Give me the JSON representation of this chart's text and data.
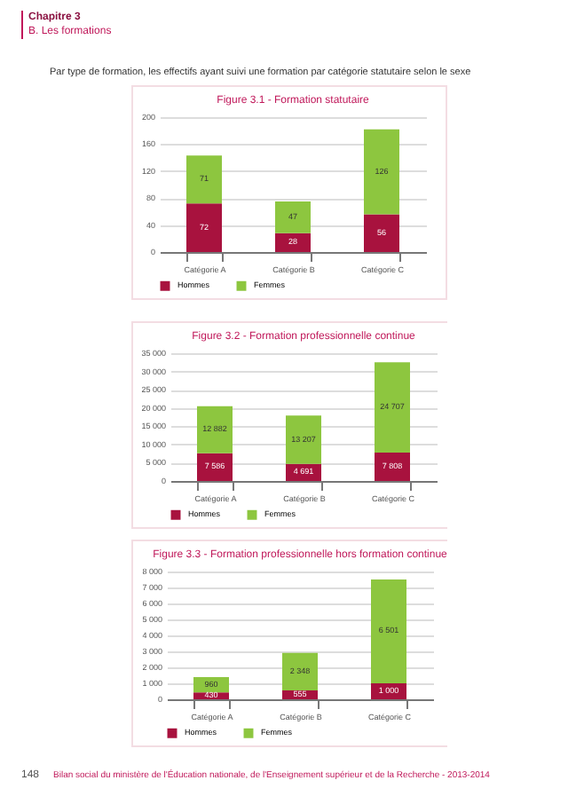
{
  "chart_data": [
    {
      "type": "bar",
      "title": "Figure 3.1 - Formation statutaire",
      "annotations": [
        "Chapitre 3",
        "B. Les formations",
        "Par type de formation, les effectifs ayant suivi une formation par catégorie statutaire selon le sexe"
      ],
      "categories": [
        "Catégorie A",
        "Catégorie B",
        "Catégorie C"
      ],
      "series": [
        {
          "name": "Hommes",
          "color": "#a8123e",
          "values": [
            72,
            28,
            56
          ],
          "value_labels": [
            "72",
            "28",
            "56"
          ]
        },
        {
          "name": "Femmes",
          "color": "#8dc63f",
          "values": [
            71,
            47,
            126
          ],
          "value_labels": [
            "71",
            "47",
            "126"
          ]
        }
      ],
      "stacked": true,
      "ylim": [
        0,
        200
      ],
      "yticks": [
        0,
        40,
        80,
        120,
        160,
        200
      ],
      "grid": "y",
      "legend": "bottom left"
    },
    {
      "type": "bar",
      "title": "Figure 3.2 - Formation professionnelle continue",
      "categories": [
        "Catégorie A",
        "Catégorie B",
        "Catégorie C"
      ],
      "series": [
        {
          "name": "Hommes",
          "color": "#a8123e",
          "values": [
            7586,
            4691,
            7808
          ],
          "value_labels": [
            "7 586",
            "4 691",
            "7 808"
          ]
        },
        {
          "name": "Femmes",
          "color": "#8dc63f",
          "values": [
            12882,
            13207,
            24707
          ],
          "value_labels": [
            "12 882",
            "13 207",
            "24 707"
          ]
        }
      ],
      "stacked": true,
      "ylim": [
        0,
        35000
      ],
      "yticks": [
        0,
        {
          "value": 5000,
          "label": "5 000"
        },
        {
          "value": 10000,
          "label": "10 000"
        },
        {
          "value": 15000,
          "label": "15 000"
        },
        {
          "value": 20000,
          "label": "20 000"
        },
        {
          "value": 25000,
          "label": "25 000"
        },
        {
          "value": 30000,
          "label": "30 000"
        },
        {
          "value": 35000,
          "label": "35 000"
        }
      ],
      "grid": "y",
      "legend": "bottom left"
    },
    {
      "type": "bar",
      "title": "Figure 3.3 - Formation professionnelle hors formation continue",
      "annotations": [
        "148",
        "Bilan social du ministère de l'Éducation nationale, de l'Enseignement supérieur et de la Recherche - 2013-2014"
      ],
      "categories": [
        "Catégorie A",
        "Catégorie B",
        "Catégorie C"
      ],
      "series": [
        {
          "name": "Hommes",
          "color": "#a8123e",
          "values": [
            430,
            555,
            1000
          ],
          "value_labels": [
            "430",
            "555",
            "1 000"
          ]
        },
        {
          "name": "Femmes",
          "color": "#8dc63f",
          "values": [
            960,
            2348,
            6501
          ],
          "value_labels": [
            "960",
            "2 348",
            "6 501"
          ]
        }
      ],
      "stacked": true,
      "ylim": [
        0,
        8000
      ],
      "yticks": [
        0,
        {
          "value": 1000,
          "label": "1 000"
        },
        {
          "value": 2000,
          "label": "2 000"
        },
        {
          "value": 3000,
          "label": "3 000"
        },
        {
          "value": 4000,
          "label": "4 000"
        },
        {
          "value": 5000,
          "label": "5 000"
        },
        {
          "value": 6000,
          "label": "6 000"
        },
        {
          "value": 7000,
          "label": "7 000"
        },
        {
          "value": 8000,
          "label": "8 000"
        }
      ],
      "grid": "y",
      "legend": "bottom left"
    }
  ]
}
